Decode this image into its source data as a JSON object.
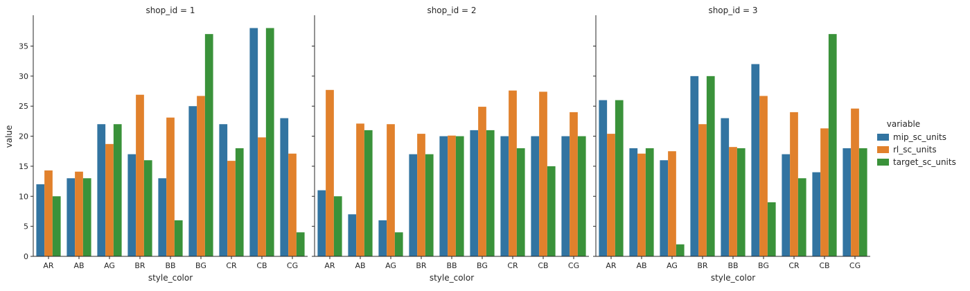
{
  "chart_data": {
    "type": "bar",
    "ylabel": "value",
    "ylim": [
      0,
      40
    ],
    "yticks": [
      0,
      5,
      10,
      15,
      20,
      25,
      30,
      35
    ],
    "categories": [
      "AR",
      "AB",
      "AG",
      "BR",
      "BB",
      "BG",
      "CR",
      "CB",
      "CG"
    ],
    "legend": {
      "title": "variable",
      "placement": "right",
      "series": [
        {
          "name": "mip_sc_units",
          "color": "#3274a1"
        },
        {
          "name": "rl_sc_units",
          "color": "#e1812c"
        },
        {
          "name": "target_sc_units",
          "color": "#3a923a"
        }
      ]
    },
    "panels": [
      {
        "title": "shop_id = 1",
        "xlabel": "style_color",
        "series": [
          {
            "name": "mip_sc_units",
            "values": [
              12,
              13,
              22,
              17,
              13,
              25,
              22,
              38,
              23
            ]
          },
          {
            "name": "rl_sc_units",
            "values": [
              14.3,
              14.1,
              18.7,
              26.9,
              23.1,
              26.7,
              15.9,
              19.8,
              17.1
            ]
          },
          {
            "name": "target_sc_units",
            "values": [
              10,
              13,
              22,
              16,
              6,
              37,
              18,
              38,
              4
            ]
          }
        ]
      },
      {
        "title": "shop_id = 2",
        "xlabel": "style_color",
        "series": [
          {
            "name": "mip_sc_units",
            "values": [
              11,
              7,
              6,
              17,
              20,
              21,
              20,
              20,
              20
            ]
          },
          {
            "name": "rl_sc_units",
            "values": [
              27.7,
              22.1,
              22.0,
              20.4,
              20.1,
              24.9,
              27.6,
              27.4,
              24.0
            ]
          },
          {
            "name": "target_sc_units",
            "values": [
              10,
              21,
              4,
              17,
              20,
              21,
              18,
              15,
              20
            ]
          }
        ]
      },
      {
        "title": "shop_id = 3",
        "xlabel": "style_color",
        "series": [
          {
            "name": "mip_sc_units",
            "values": [
              26,
              18,
              16,
              30,
              23,
              32,
              17,
              14,
              18
            ]
          },
          {
            "name": "rl_sc_units",
            "values": [
              20.4,
              17.1,
              17.5,
              22.0,
              18.2,
              26.7,
              24.0,
              21.3,
              24.6
            ]
          },
          {
            "name": "target_sc_units",
            "values": [
              26,
              18,
              2,
              30,
              18,
              9,
              13,
              37,
              18
            ]
          }
        ]
      }
    ]
  }
}
